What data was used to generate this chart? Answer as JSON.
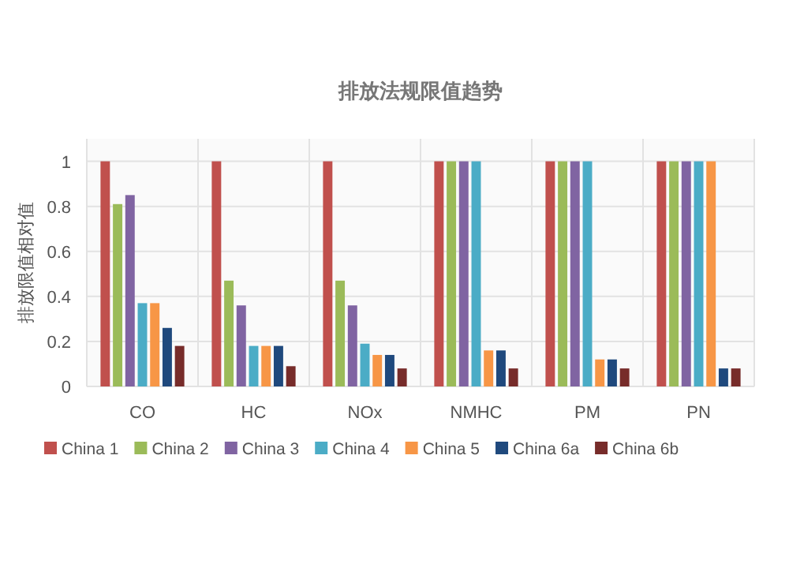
{
  "chart_data": {
    "type": "bar",
    "title": "排放法规限值趋势",
    "ylabel": "排放限值相对值",
    "categories": [
      "CO",
      "HC",
      "NOx",
      "NMHC",
      "PM",
      "PN"
    ],
    "series": [
      {
        "name": "China 1",
        "color": "#c0504d",
        "values": [
          1,
          1,
          1,
          1,
          1,
          1
        ]
      },
      {
        "name": "China 2",
        "color": "#9bbb59",
        "values": [
          0.81,
          0.47,
          0.47,
          1,
          1,
          1
        ]
      },
      {
        "name": "China 3",
        "color": "#8064a2",
        "values": [
          0.85,
          0.36,
          0.36,
          1,
          1,
          1
        ]
      },
      {
        "name": "China 4",
        "color": "#4bacc6",
        "values": [
          0.37,
          0.18,
          0.19,
          1,
          1,
          1
        ]
      },
      {
        "name": "China 5",
        "color": "#f79646",
        "values": [
          0.37,
          0.18,
          0.14,
          0.16,
          0.12,
          1
        ]
      },
      {
        "name": "China 6a",
        "color": "#1f497d",
        "values": [
          0.26,
          0.18,
          0.14,
          0.16,
          0.12,
          0.08
        ]
      },
      {
        "name": "China 6b",
        "color": "#772c2a",
        "values": [
          0.18,
          0.09,
          0.08,
          0.08,
          0.08,
          0.08
        ]
      }
    ],
    "ylim": [
      0,
      1.1
    ],
    "yticks": [
      0,
      0.2,
      0.4,
      0.6,
      0.8,
      1
    ],
    "grid": true,
    "legend": "bottom"
  }
}
